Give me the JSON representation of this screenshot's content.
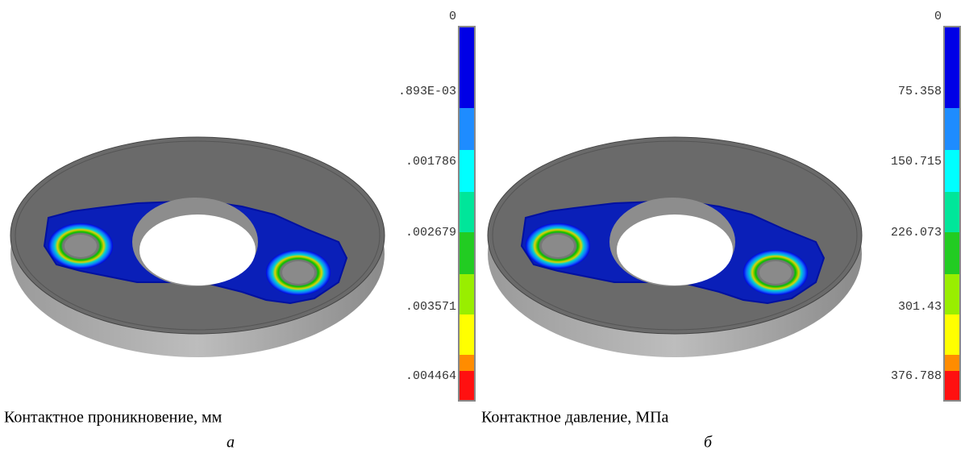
{
  "panels": [
    {
      "scale_labels": [
        "0",
        ".893E-03",
        ".001786",
        ".002679",
        ".003571",
        ".004464"
      ],
      "caption": "Контактное проникновение, мм",
      "letter": "а"
    },
    {
      "scale_labels": [
        "0",
        "75.358",
        "150.715",
        "226.073",
        "301.43",
        "376.788"
      ],
      "caption": "Контактное давление, МПа",
      "letter": "б"
    }
  ]
}
